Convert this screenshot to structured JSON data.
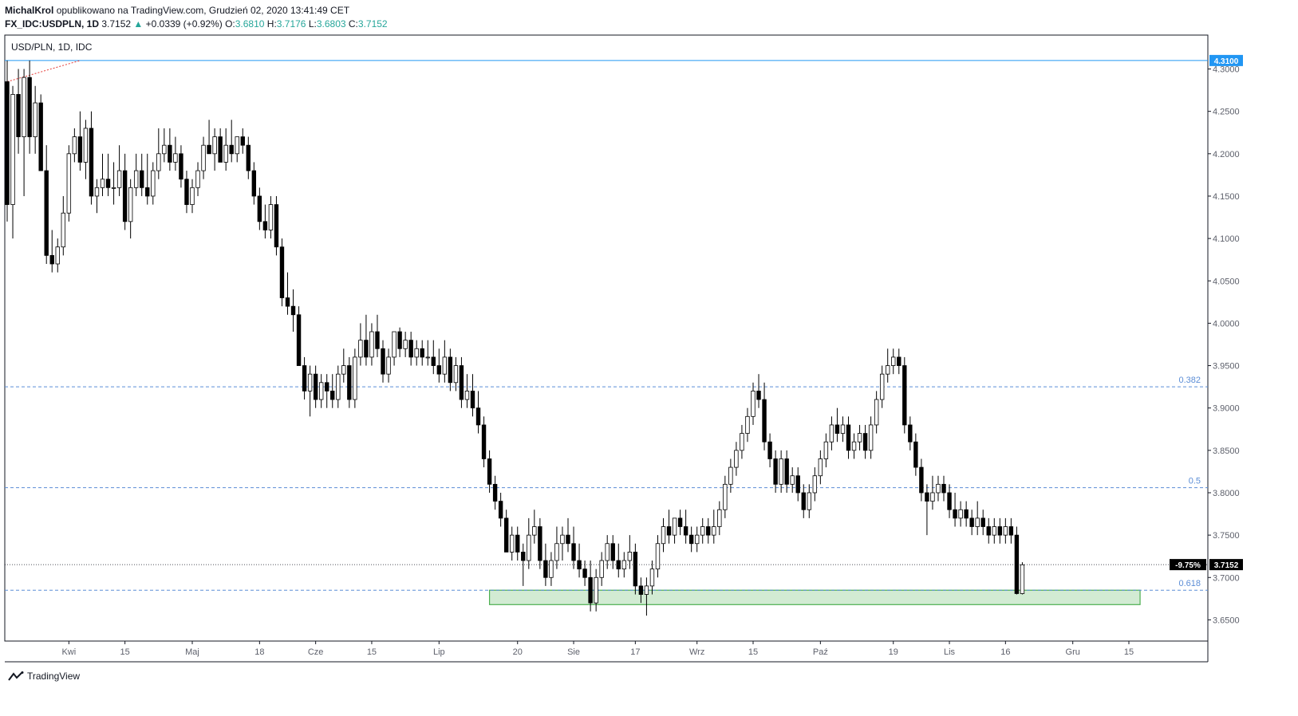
{
  "header": {
    "author": "MichalKrol",
    "published_text": "opublikowano na TradingView.com, Grudzień 02, 2020 13:41:49 CET",
    "symbol": "FX_IDC:USDPLN, 1D",
    "last": "3.7152",
    "change_arrow": "▲",
    "change": "+0.0339 (+0.92%)",
    "o_label": "O:",
    "o_value": "3.6810",
    "h_label": "H:",
    "h_value": "3.7176",
    "l_label": "L:",
    "l_value": "3.6803",
    "c_label": "C:",
    "c_value": "3.7152"
  },
  "footer": {
    "brand": "TradingView",
    "logo_icon": "tradingview-logo-icon"
  },
  "chart_data": {
    "type": "candlestick",
    "title": "USD/PLN, 1D, IDC",
    "ylim": [
      3.625,
      4.34
    ],
    "y_ticks": [
      "3.6500",
      "3.7000",
      "3.7500",
      "3.8000",
      "3.8500",
      "3.9000",
      "3.9500",
      "4.0000",
      "4.0500",
      "4.1000",
      "4.1500",
      "4.2000",
      "4.2500",
      "4.3000"
    ],
    "x_ticks": [
      {
        "label": "Kwi",
        "idx": 11
      },
      {
        "label": "15",
        "idx": 21
      },
      {
        "label": "Maj",
        "idx": 33
      },
      {
        "label": "18",
        "idx": 45
      },
      {
        "label": "Cze",
        "idx": 55
      },
      {
        "label": "15",
        "idx": 65
      },
      {
        "label": "Lip",
        "idx": 77
      },
      {
        "label": "20",
        "idx": 91
      },
      {
        "label": "Sie",
        "idx": 101
      },
      {
        "label": "17",
        "idx": 112
      },
      {
        "label": "Wrz",
        "idx": 123
      },
      {
        "label": "15",
        "idx": 133
      },
      {
        "label": "Paź",
        "idx": 145
      },
      {
        "label": "19",
        "idx": 158
      },
      {
        "label": "Lis",
        "idx": 168
      },
      {
        "label": "16",
        "idx": 178
      },
      {
        "label": "Gru",
        "idx": 190
      },
      {
        "label": "15",
        "idx": 200
      }
    ],
    "hlines": [
      {
        "value": 4.31,
        "label": "4.3100",
        "style": "solid",
        "color": "#2196f3"
      },
      {
        "value": 3.925,
        "label": "0.382",
        "style": "dashed",
        "color": "#5b8dd6"
      },
      {
        "value": 3.806,
        "label": "0.5",
        "style": "dashed",
        "color": "#5b8dd6"
      },
      {
        "value": 3.685,
        "label": "0.618",
        "style": "dashed",
        "color": "#5b8dd6"
      }
    ],
    "last_price": {
      "value": 3.7152,
      "label": "3.7152",
      "pct_label": "-9.75%"
    },
    "zone": {
      "from_idx": 86,
      "to_idx": 202,
      "low": 3.668,
      "high": 3.685,
      "color": "#4caf50"
    },
    "trend_segment": {
      "from_idx": 0,
      "from_value": 4.285,
      "to_idx": 13,
      "to_value": 4.31,
      "color": "#e53935"
    },
    "colors": {
      "up_fill": "#ffffff",
      "down_fill": "#000000",
      "wick": "#000000",
      "axis_text": "#5d606b"
    },
    "candles": [
      [
        4.285,
        4.31,
        4.12,
        4.14
      ],
      [
        4.14,
        4.28,
        4.1,
        4.27
      ],
      [
        4.27,
        4.3,
        4.2,
        4.22
      ],
      [
        4.22,
        4.3,
        4.15,
        4.29
      ],
      [
        4.29,
        4.31,
        4.2,
        4.22
      ],
      [
        4.22,
        4.28,
        4.2,
        4.26
      ],
      [
        4.26,
        4.27,
        4.18,
        4.18
      ],
      [
        4.18,
        4.21,
        4.07,
        4.08
      ],
      [
        4.08,
        4.11,
        4.06,
        4.07
      ],
      [
        4.07,
        4.1,
        4.06,
        4.09
      ],
      [
        4.09,
        4.15,
        4.08,
        4.13
      ],
      [
        4.13,
        4.21,
        4.12,
        4.2
      ],
      [
        4.2,
        4.23,
        4.19,
        4.22
      ],
      [
        4.22,
        4.25,
        4.18,
        4.19
      ],
      [
        4.19,
        4.24,
        4.17,
        4.23
      ],
      [
        4.23,
        4.25,
        4.14,
        4.15
      ],
      [
        4.15,
        4.17,
        4.13,
        4.16
      ],
      [
        4.16,
        4.2,
        4.15,
        4.17
      ],
      [
        4.17,
        4.2,
        4.15,
        4.16
      ],
      [
        4.16,
        4.19,
        4.14,
        4.16
      ],
      [
        4.16,
        4.21,
        4.15,
        4.18
      ],
      [
        4.18,
        4.2,
        4.11,
        4.12
      ],
      [
        4.12,
        4.17,
        4.1,
        4.16
      ],
      [
        4.16,
        4.2,
        4.15,
        4.18
      ],
      [
        4.18,
        4.2,
        4.15,
        4.16
      ],
      [
        4.16,
        4.2,
        4.14,
        4.15
      ],
      [
        4.15,
        4.19,
        4.14,
        4.18
      ],
      [
        4.18,
        4.23,
        4.17,
        4.2
      ],
      [
        4.2,
        4.23,
        4.19,
        4.21
      ],
      [
        4.21,
        4.23,
        4.18,
        4.19
      ],
      [
        4.19,
        4.22,
        4.18,
        4.2
      ],
      [
        4.2,
        4.21,
        4.16,
        4.17
      ],
      [
        4.17,
        4.18,
        4.13,
        4.14
      ],
      [
        4.14,
        4.17,
        4.13,
        4.16
      ],
      [
        4.16,
        4.19,
        4.15,
        4.18
      ],
      [
        4.18,
        4.22,
        4.17,
        4.21
      ],
      [
        4.21,
        4.24,
        4.2,
        4.2
      ],
      [
        4.2,
        4.23,
        4.18,
        4.22
      ],
      [
        4.22,
        4.23,
        4.19,
        4.19
      ],
      [
        4.19,
        4.23,
        4.18,
        4.21
      ],
      [
        4.21,
        4.24,
        4.19,
        4.2
      ],
      [
        4.2,
        4.22,
        4.19,
        4.22
      ],
      [
        4.22,
        4.23,
        4.2,
        4.21
      ],
      [
        4.21,
        4.22,
        4.17,
        4.18
      ],
      [
        4.18,
        4.19,
        4.14,
        4.15
      ],
      [
        4.15,
        4.16,
        4.11,
        4.12
      ],
      [
        4.12,
        4.14,
        4.1,
        4.11
      ],
      [
        4.11,
        4.15,
        4.1,
        4.14
      ],
      [
        4.14,
        4.15,
        4.08,
        4.09
      ],
      [
        4.09,
        4.1,
        4.02,
        4.03
      ],
      [
        4.03,
        4.06,
        4.01,
        4.02
      ],
      [
        4.02,
        4.04,
        3.99,
        4.01
      ],
      [
        4.01,
        4.02,
        3.95,
        3.95
      ],
      [
        3.95,
        3.96,
        3.91,
        3.92
      ],
      [
        3.92,
        3.95,
        3.89,
        3.94
      ],
      [
        3.94,
        3.95,
        3.9,
        3.91
      ],
      [
        3.91,
        3.94,
        3.9,
        3.93
      ],
      [
        3.93,
        3.94,
        3.9,
        3.92
      ],
      [
        3.92,
        3.94,
        3.9,
        3.91
      ],
      [
        3.91,
        3.95,
        3.9,
        3.94
      ],
      [
        3.94,
        3.97,
        3.93,
        3.95
      ],
      [
        3.95,
        3.96,
        3.9,
        3.91
      ],
      [
        3.91,
        3.97,
        3.9,
        3.96
      ],
      [
        3.96,
        4.0,
        3.95,
        3.98
      ],
      [
        3.98,
        4.01,
        3.95,
        3.96
      ],
      [
        3.96,
        4.0,
        3.95,
        3.99
      ],
      [
        3.99,
        4.01,
        3.96,
        3.97
      ],
      [
        3.97,
        3.98,
        3.93,
        3.94
      ],
      [
        3.94,
        3.97,
        3.93,
        3.96
      ],
      [
        3.96,
        3.99,
        3.95,
        3.99
      ],
      [
        3.99,
        3.995,
        3.96,
        3.97
      ],
      [
        3.97,
        3.99,
        3.96,
        3.98
      ],
      [
        3.98,
        3.99,
        3.95,
        3.96
      ],
      [
        3.96,
        3.98,
        3.95,
        3.97
      ],
      [
        3.97,
        3.98,
        3.95,
        3.96
      ],
      [
        3.96,
        3.98,
        3.95,
        3.96
      ],
      [
        3.96,
        3.98,
        3.94,
        3.95
      ],
      [
        3.95,
        3.97,
        3.93,
        3.94
      ],
      [
        3.94,
        3.98,
        3.93,
        3.96
      ],
      [
        3.96,
        3.97,
        3.92,
        3.93
      ],
      [
        3.93,
        3.96,
        3.92,
        3.95
      ],
      [
        3.95,
        3.96,
        3.9,
        3.91
      ],
      [
        3.91,
        3.94,
        3.9,
        3.92
      ],
      [
        3.92,
        3.94,
        3.89,
        3.9
      ],
      [
        3.9,
        3.92,
        3.87,
        3.88
      ],
      [
        3.88,
        3.89,
        3.83,
        3.84
      ],
      [
        3.84,
        3.85,
        3.8,
        3.81
      ],
      [
        3.81,
        3.82,
        3.78,
        3.79
      ],
      [
        3.79,
        3.8,
        3.76,
        3.77
      ],
      [
        3.77,
        3.78,
        3.73,
        3.73
      ],
      [
        3.73,
        3.76,
        3.72,
        3.75
      ],
      [
        3.75,
        3.76,
        3.72,
        3.73
      ],
      [
        3.73,
        3.74,
        3.69,
        3.72
      ],
      [
        3.72,
        3.77,
        3.71,
        3.75
      ],
      [
        3.75,
        3.78,
        3.74,
        3.76
      ],
      [
        3.76,
        3.77,
        3.71,
        3.72
      ],
      [
        3.72,
        3.74,
        3.69,
        3.7
      ],
      [
        3.7,
        3.73,
        3.69,
        3.72
      ],
      [
        3.72,
        3.76,
        3.71,
        3.74
      ],
      [
        3.74,
        3.76,
        3.72,
        3.75
      ],
      [
        3.75,
        3.77,
        3.73,
        3.74
      ],
      [
        3.74,
        3.76,
        3.71,
        3.72
      ],
      [
        3.72,
        3.74,
        3.7,
        3.71
      ],
      [
        3.71,
        3.72,
        3.69,
        3.7
      ],
      [
        3.7,
        3.72,
        3.66,
        3.67
      ],
      [
        3.67,
        3.71,
        3.66,
        3.7
      ],
      [
        3.7,
        3.73,
        3.69,
        3.72
      ],
      [
        3.72,
        3.75,
        3.71,
        3.74
      ],
      [
        3.74,
        3.75,
        3.71,
        3.72
      ],
      [
        3.72,
        3.74,
        3.7,
        3.71
      ],
      [
        3.71,
        3.73,
        3.7,
        3.72
      ],
      [
        3.72,
        3.75,
        3.71,
        3.73
      ],
      [
        3.73,
        3.74,
        3.68,
        3.69
      ],
      [
        3.69,
        3.7,
        3.67,
        3.68
      ],
      [
        3.68,
        3.7,
        3.655,
        3.69
      ],
      [
        3.69,
        3.72,
        3.68,
        3.71
      ],
      [
        3.71,
        3.75,
        3.7,
        3.74
      ],
      [
        3.74,
        3.77,
        3.73,
        3.76
      ],
      [
        3.76,
        3.78,
        3.74,
        3.75
      ],
      [
        3.75,
        3.77,
        3.74,
        3.77
      ],
      [
        3.77,
        3.78,
        3.75,
        3.76
      ],
      [
        3.76,
        3.78,
        3.74,
        3.75
      ],
      [
        3.75,
        3.76,
        3.73,
        3.74
      ],
      [
        3.74,
        3.76,
        3.73,
        3.75
      ],
      [
        3.75,
        3.77,
        3.74,
        3.76
      ],
      [
        3.76,
        3.77,
        3.74,
        3.75
      ],
      [
        3.75,
        3.78,
        3.74,
        3.76
      ],
      [
        3.76,
        3.79,
        3.75,
        3.78
      ],
      [
        3.78,
        3.82,
        3.77,
        3.81
      ],
      [
        3.81,
        3.84,
        3.8,
        3.83
      ],
      [
        3.83,
        3.86,
        3.82,
        3.85
      ],
      [
        3.85,
        3.88,
        3.84,
        3.87
      ],
      [
        3.87,
        3.9,
        3.86,
        3.89
      ],
      [
        3.89,
        3.93,
        3.88,
        3.92
      ],
      [
        3.92,
        3.94,
        3.9,
        3.91
      ],
      [
        3.91,
        3.93,
        3.85,
        3.86
      ],
      [
        3.86,
        3.87,
        3.83,
        3.84
      ],
      [
        3.84,
        3.85,
        3.8,
        3.81
      ],
      [
        3.81,
        3.85,
        3.8,
        3.84
      ],
      [
        3.84,
        3.85,
        3.8,
        3.81
      ],
      [
        3.81,
        3.83,
        3.8,
        3.82
      ],
      [
        3.82,
        3.83,
        3.79,
        3.8
      ],
      [
        3.8,
        3.81,
        3.77,
        3.78
      ],
      [
        3.78,
        3.81,
        3.77,
        3.8
      ],
      [
        3.8,
        3.83,
        3.79,
        3.82
      ],
      [
        3.82,
        3.85,
        3.81,
        3.84
      ],
      [
        3.84,
        3.87,
        3.83,
        3.86
      ],
      [
        3.86,
        3.89,
        3.85,
        3.88
      ],
      [
        3.88,
        3.9,
        3.86,
        3.87
      ],
      [
        3.87,
        3.89,
        3.86,
        3.88
      ],
      [
        3.88,
        3.89,
        3.84,
        3.85
      ],
      [
        3.85,
        3.87,
        3.84,
        3.86
      ],
      [
        3.86,
        3.88,
        3.85,
        3.87
      ],
      [
        3.87,
        3.88,
        3.84,
        3.85
      ],
      [
        3.85,
        3.89,
        3.84,
        3.88
      ],
      [
        3.88,
        3.92,
        3.87,
        3.91
      ],
      [
        3.91,
        3.95,
        3.9,
        3.94
      ],
      [
        3.94,
        3.97,
        3.93,
        3.95
      ],
      [
        3.95,
        3.97,
        3.94,
        3.96
      ],
      [
        3.96,
        3.97,
        3.94,
        3.95
      ],
      [
        3.95,
        3.96,
        3.87,
        3.88
      ],
      [
        3.88,
        3.89,
        3.85,
        3.86
      ],
      [
        3.86,
        3.87,
        3.82,
        3.83
      ],
      [
        3.83,
        3.84,
        3.79,
        3.8
      ],
      [
        3.8,
        3.81,
        3.75,
        3.79
      ],
      [
        3.79,
        3.82,
        3.78,
        3.8
      ],
      [
        3.8,
        3.82,
        3.79,
        3.81
      ],
      [
        3.81,
        3.82,
        3.79,
        3.8
      ],
      [
        3.8,
        3.81,
        3.77,
        3.78
      ],
      [
        3.78,
        3.8,
        3.76,
        3.77
      ],
      [
        3.77,
        3.79,
        3.76,
        3.78
      ],
      [
        3.78,
        3.79,
        3.76,
        3.77
      ],
      [
        3.77,
        3.78,
        3.75,
        3.76
      ],
      [
        3.76,
        3.79,
        3.75,
        3.77
      ],
      [
        3.77,
        3.78,
        3.75,
        3.76
      ],
      [
        3.76,
        3.77,
        3.74,
        3.75
      ],
      [
        3.75,
        3.77,
        3.74,
        3.76
      ],
      [
        3.76,
        3.77,
        3.74,
        3.75
      ],
      [
        3.75,
        3.77,
        3.74,
        3.76
      ],
      [
        3.76,
        3.77,
        3.74,
        3.75
      ],
      [
        3.75,
        3.76,
        3.68,
        3.681
      ],
      [
        3.681,
        3.718,
        3.68,
        3.715
      ]
    ]
  }
}
